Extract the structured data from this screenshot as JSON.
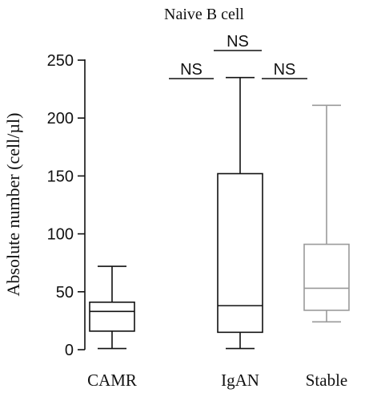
{
  "chart_data": {
    "type": "box",
    "title": "Naive B cell",
    "xlabel": "",
    "ylabel": "Absolute number (cell/µl)",
    "ylim": [
      0,
      250
    ],
    "yticks": [
      0,
      50,
      100,
      150,
      200,
      250
    ],
    "categories": [
      "CAMR",
      "IgAN",
      "Stable"
    ],
    "boxes": [
      {
        "category": "CAMR",
        "min": 1,
        "q1": 16,
        "median": 33,
        "q3": 41,
        "max": 72,
        "color": "#111111"
      },
      {
        "category": "IgAN",
        "min": 1,
        "q1": 15,
        "median": 38,
        "q3": 152,
        "max": 235,
        "color": "#111111"
      },
      {
        "category": "Stable",
        "min": 24,
        "q1": 34,
        "median": 53,
        "q3": 91,
        "max": 211,
        "color": "#9a9a9a"
      }
    ],
    "significance": [
      {
        "label": "NS",
        "from": "CAMR",
        "to": "IgAN"
      },
      {
        "label": "NS",
        "from": "CAMR",
        "to": "Stable"
      },
      {
        "label": "NS",
        "from": "IgAN",
        "to": "Stable"
      }
    ],
    "grid": false,
    "legend": "none"
  }
}
